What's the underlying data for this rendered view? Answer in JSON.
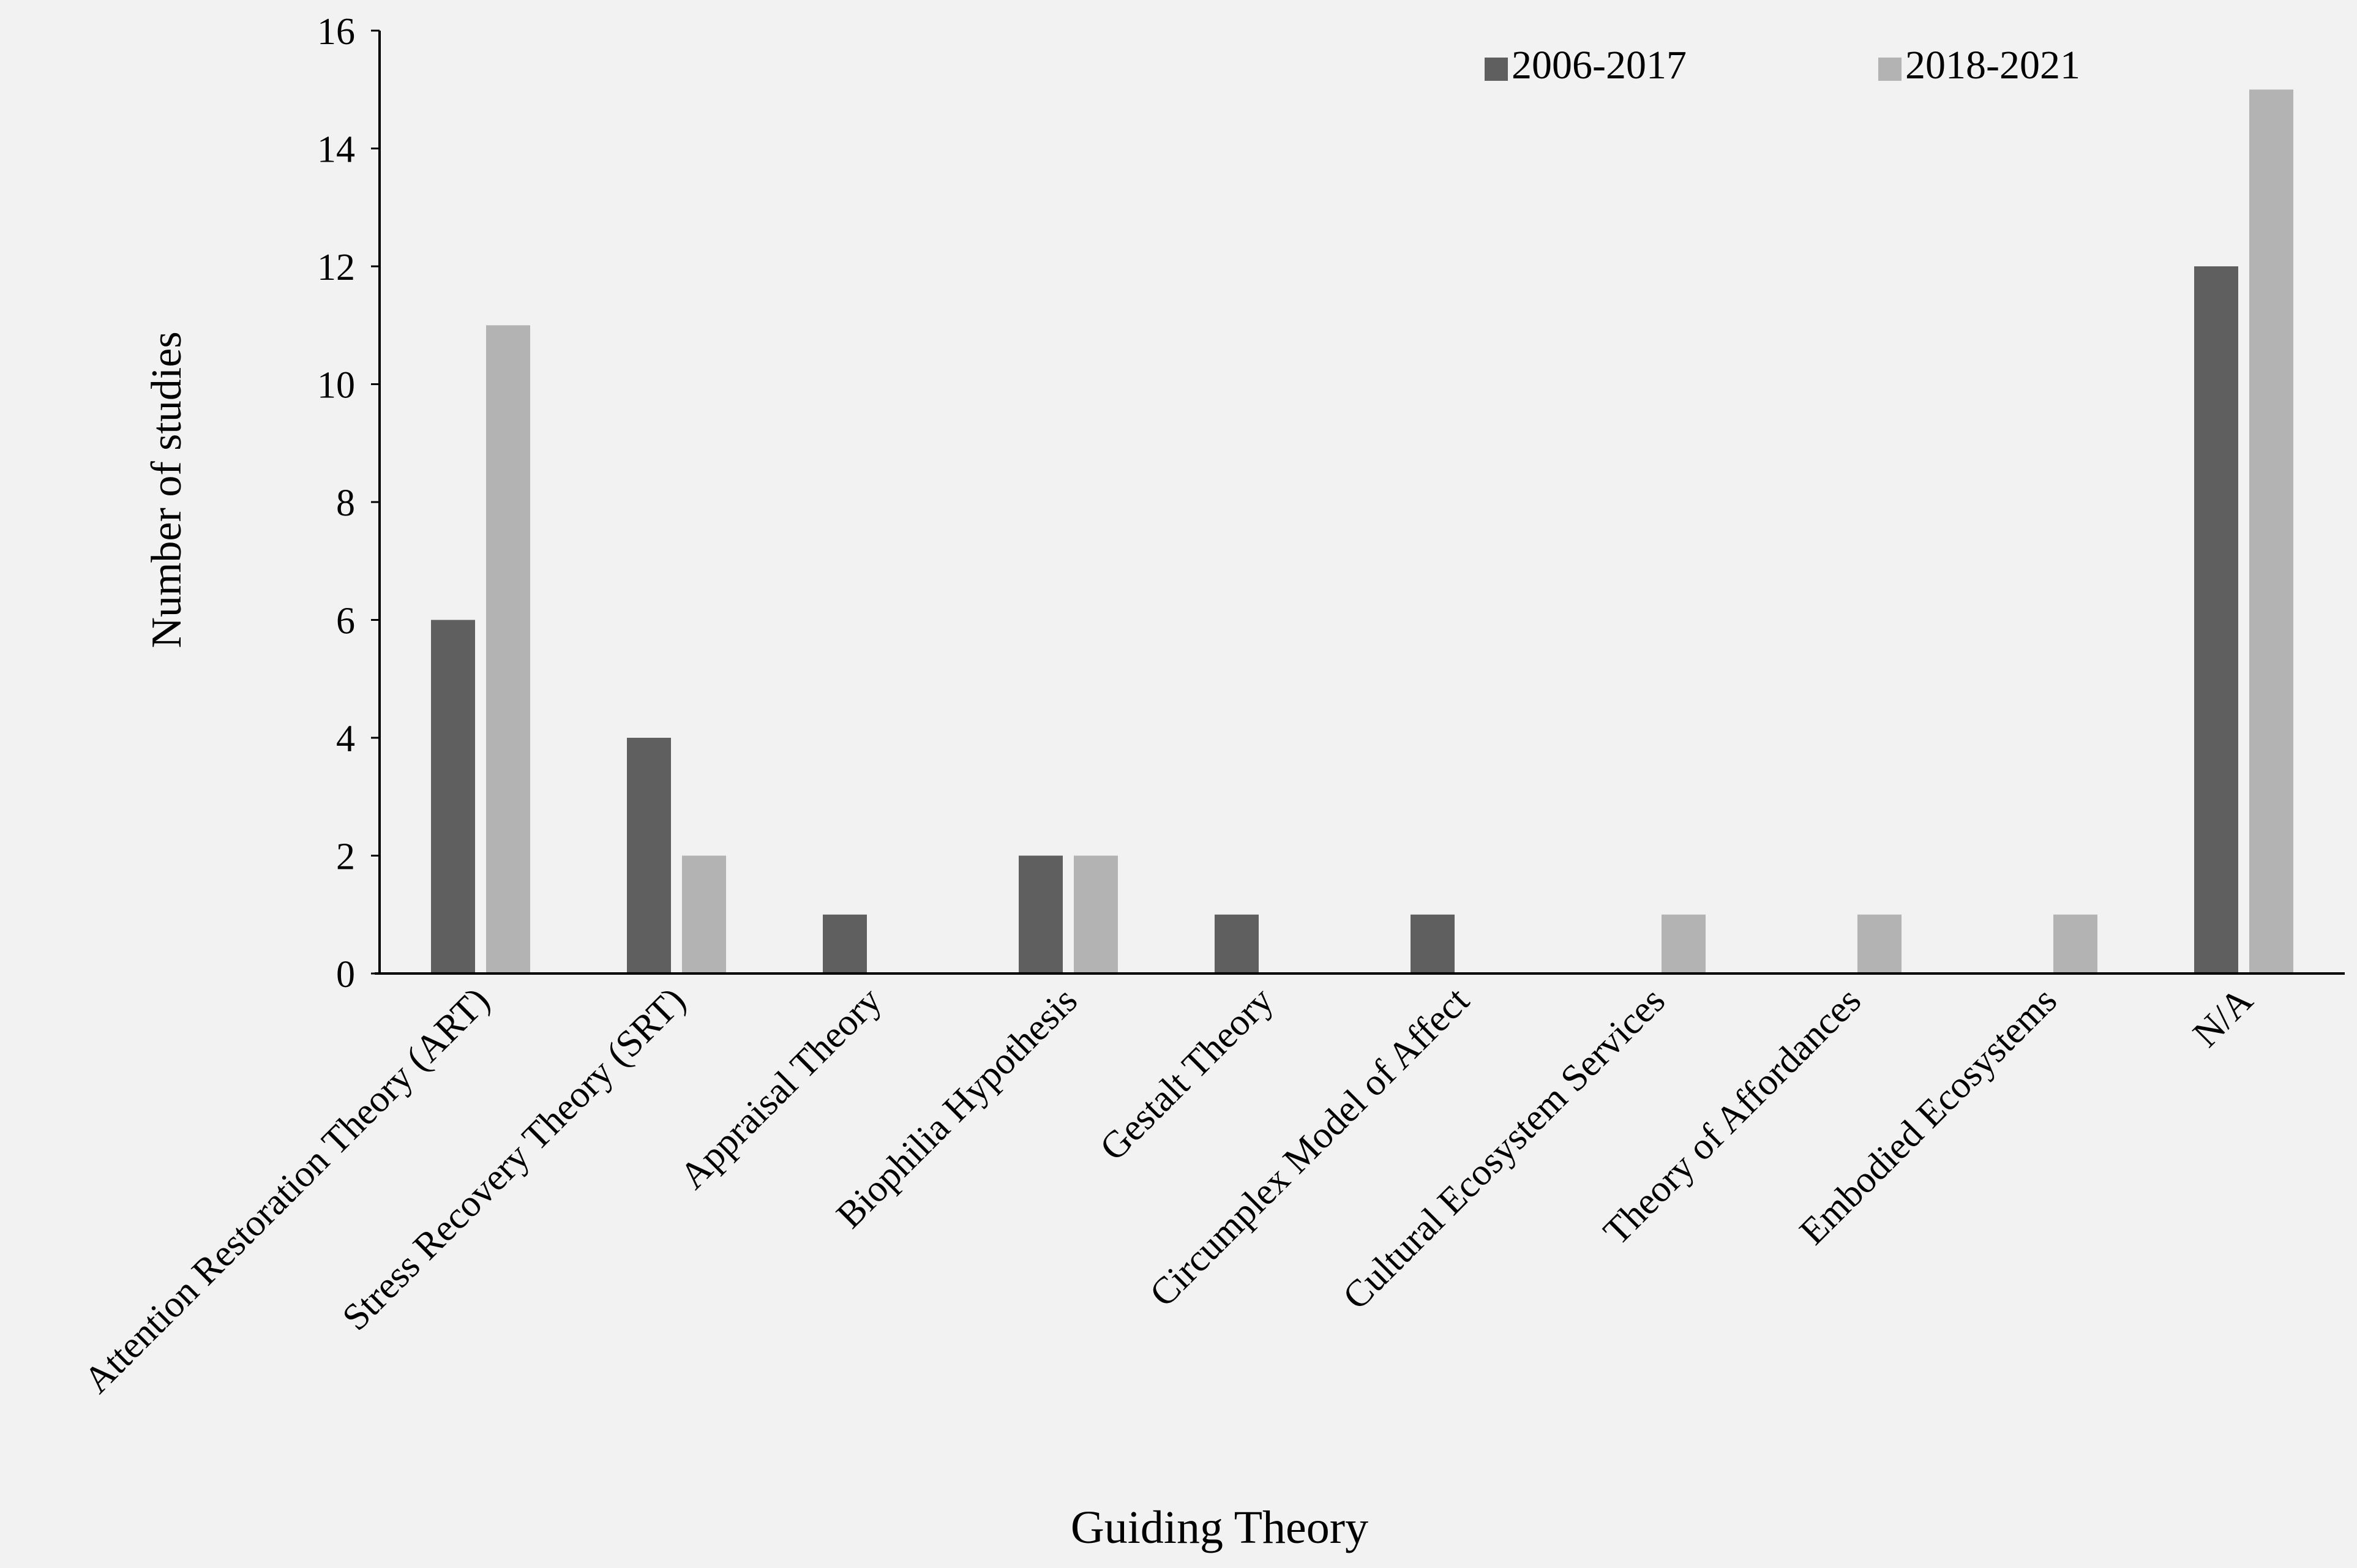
{
  "chart_data": {
    "type": "bar",
    "title": "",
    "xlabel": "Guiding Theory",
    "ylabel": "Number of studies",
    "ylim": [
      0,
      16
    ],
    "ytick_step": 2,
    "grid": false,
    "legend_position": "top-right",
    "categories": [
      "Attention Restoration Theory (ART)",
      "Stress Recovery Theory (SRT)",
      "Appraisal Theory",
      "Biophilia Hypothesis",
      "Gestalt Theory",
      "Circumplex Model of Affect",
      "Cultural Ecosystem Services",
      "Theory of Affordances",
      "Embodied Ecosystems",
      "N/A"
    ],
    "series": [
      {
        "name": "2006-2017",
        "color": "#5f5f5f",
        "values": [
          6,
          4,
          1,
          2,
          1,
          1,
          0,
          0,
          0,
          12
        ]
      },
      {
        "name": "2018-2021",
        "color": "#b3b3b3",
        "values": [
          11,
          2,
          0,
          2,
          0,
          0,
          1,
          1,
          1,
          15
        ]
      }
    ]
  }
}
